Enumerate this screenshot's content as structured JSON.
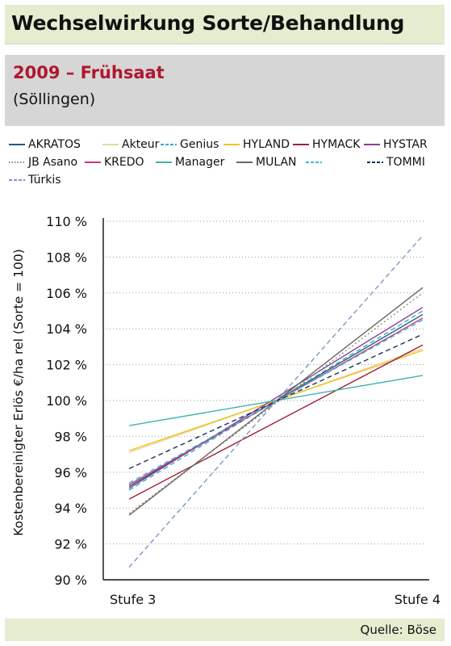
{
  "header": {
    "title": "Wechselwirkung Sorte/Behandlung",
    "subtitle": "2009 – Frühsaat",
    "location": "(Söllingen)"
  },
  "footer": {
    "source": "Quelle: Böse"
  },
  "chart_data": {
    "type": "line",
    "title": "",
    "ylabel": "Kostenbereinigter Erlös €/ha rel (Sorte = 100)",
    "xlabel": "",
    "categories": [
      "Stufe 3",
      "Stufe 4"
    ],
    "ylim": [
      90,
      110
    ],
    "yticks": [
      90,
      92,
      94,
      96,
      98,
      100,
      102,
      104,
      106,
      108,
      110
    ],
    "ytick_labels": [
      "90 %",
      "92 %",
      "94 %",
      "96 %",
      "98 %",
      "100 %",
      "102 %",
      "104 %",
      "106 %",
      "108 %",
      "110 %"
    ],
    "grid": "horizontal-dotted",
    "legend_position": "top",
    "series": [
      {
        "name": "AKRATOS",
        "values": [
          95.2,
          104.8
        ],
        "color": "#1f5f7a",
        "dash": "solid"
      },
      {
        "name": "Akteur",
        "values": [
          97.1,
          102.9
        ],
        "color": "#e3d7a6",
        "dash": "solid"
      },
      {
        "name": "Genius",
        "values": [
          95.0,
          105.0
        ],
        "color": "#33aecb",
        "dash": "dashed"
      },
      {
        "name": "HYLAND",
        "values": [
          97.2,
          102.8
        ],
        "color": "#f2c21a",
        "dash": "solid"
      },
      {
        "name": "HYMACK",
        "values": [
          94.5,
          103.1
        ],
        "color": "#a3203a",
        "dash": "solid"
      },
      {
        "name": "HYSTAR",
        "values": [
          95.1,
          105.2
        ],
        "color": "#8e3e93",
        "dash": "solid"
      },
      {
        "name": "JB Asano",
        "values": [
          93.7,
          106.0
        ],
        "color": "#9a8866",
        "dash": "dotted"
      },
      {
        "name": "KREDO",
        "values": [
          95.3,
          104.6
        ],
        "color": "#c23a7e",
        "dash": "solid"
      },
      {
        "name": "Manager",
        "values": [
          98.6,
          101.4
        ],
        "color": "#3fb4ad",
        "dash": "solid"
      },
      {
        "name": "MULAN",
        "values": [
          93.6,
          106.3
        ],
        "color": "#666666",
        "dash": "solid"
      },
      {
        "name": "",
        "values": [
          95.4,
          104.5
        ],
        "color": "#3dbbd8",
        "dash": "dashed"
      },
      {
        "name": "TOMMI",
        "values": [
          96.2,
          103.7
        ],
        "color": "#1c2e5c",
        "dash": "dashed"
      },
      {
        "name": "Türkis",
        "values": [
          90.7,
          109.2
        ],
        "color": "#7d96cc",
        "dash": "dashed"
      }
    ]
  }
}
